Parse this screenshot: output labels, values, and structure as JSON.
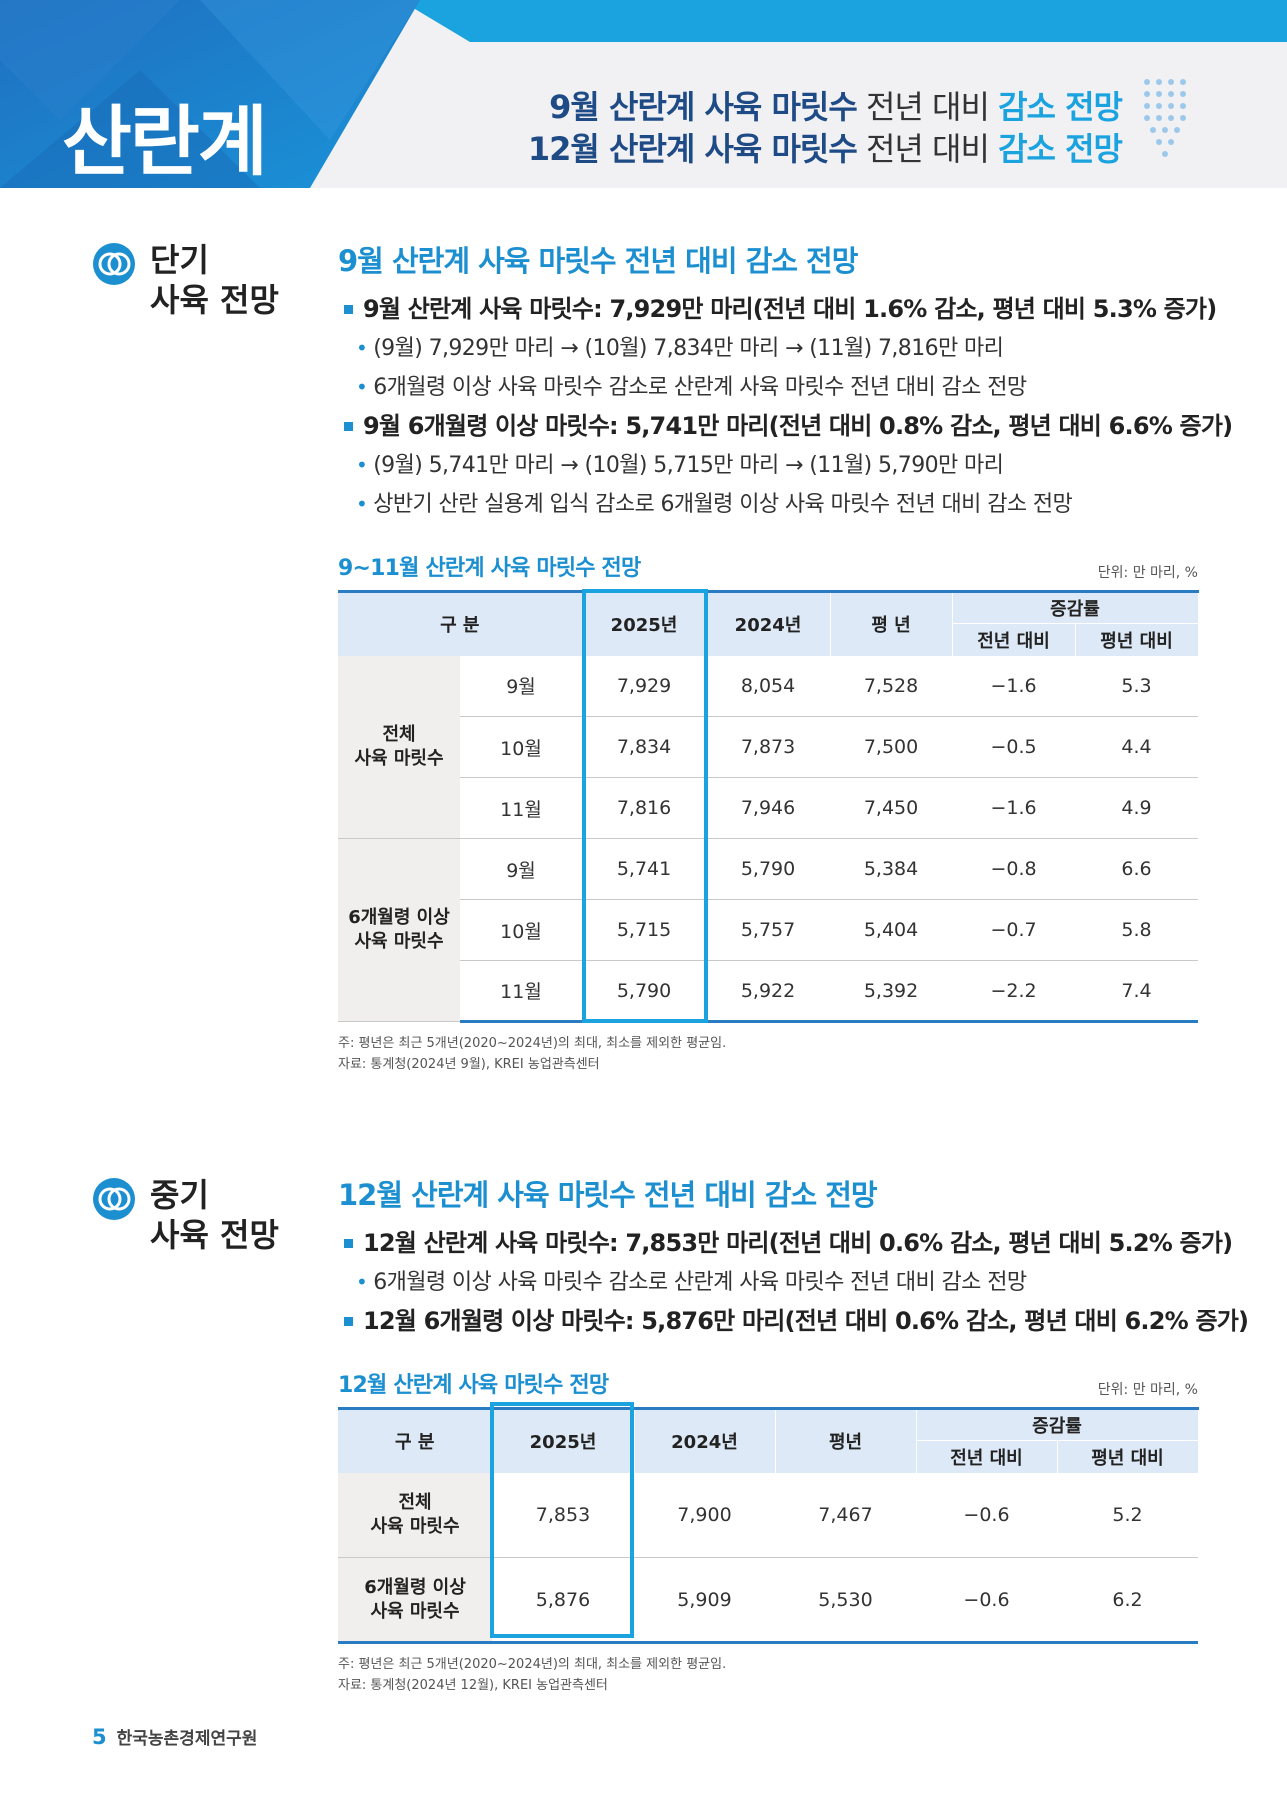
{
  "header": {
    "title": "산란계",
    "lines": [
      {
        "bold": "9월 산란계 사육 마릿수",
        "plain": " 전년 대비 ",
        "hl": "감소 전망"
      },
      {
        "bold": "12월 산란계 사육 마릿수",
        "plain": " 전년 대비 ",
        "hl": "감소 전망"
      }
    ]
  },
  "short_term": {
    "label_line1": "단기",
    "label_line2": "사육 전망",
    "heading": "9월 산란계 사육 마릿수 전년 대비 감소 전망",
    "bullets": [
      {
        "main": "9월 산란계 사육 마릿수: 7,929만 마리(전년 대비 1.6% 감소, 평년 대비 5.3% 증가)",
        "subs": [
          "(9월) 7,929만 마리 → (10월) 7,834만 마리 → (11월) 7,816만 마리",
          "6개월령 이상 사육 마릿수 감소로 산란계 사육 마릿수 전년 대비 감소 전망"
        ]
      },
      {
        "main": "9월 6개월령 이상 마릿수: 5,741만 마리(전년 대비 0.8% 감소, 평년 대비 6.6% 증가)",
        "subs": [
          "(9월) 5,741만 마리 → (10월) 5,715만 마리 → (11월) 5,790만 마리",
          "상반기 산란 실용계 입식 감소로 6개월령 이상 사육 마릿수 전년 대비 감소 전망"
        ]
      }
    ],
    "table": {
      "title": "9~11월 산란계 사육 마릿수 전망",
      "unit": "단위: 만 마리, %",
      "headers": {
        "gubun": "구  분",
        "y2025": "2025년",
        "y2024": "2024년",
        "avg": "평  년",
        "rate": "증감률",
        "yoy": "전년 대비",
        "vsavg": "평년 대비"
      },
      "groups": [
        {
          "name_line1": "전체",
          "name_line2": "사육 마릿수",
          "rows": [
            {
              "month": "9월",
              "v2025": "7,929",
              "v2024": "8,054",
              "avg": "7,528",
              "yoy": "−1.6",
              "vsavg": "5.3"
            },
            {
              "month": "10월",
              "v2025": "7,834",
              "v2024": "7,873",
              "avg": "7,500",
              "yoy": "−0.5",
              "vsavg": "4.4"
            },
            {
              "month": "11월",
              "v2025": "7,816",
              "v2024": "7,946",
              "avg": "7,450",
              "yoy": "−1.6",
              "vsavg": "4.9"
            }
          ]
        },
        {
          "name_line1": "6개월령 이상",
          "name_line2": "사육 마릿수",
          "rows": [
            {
              "month": "9월",
              "v2025": "5,741",
              "v2024": "5,790",
              "avg": "5,384",
              "yoy": "−0.8",
              "vsavg": "6.6"
            },
            {
              "month": "10월",
              "v2025": "5,715",
              "v2024": "5,757",
              "avg": "5,404",
              "yoy": "−0.7",
              "vsavg": "5.8"
            },
            {
              "month": "11월",
              "v2025": "5,790",
              "v2024": "5,922",
              "avg": "5,392",
              "yoy": "−2.2",
              "vsavg": "7.4"
            }
          ]
        }
      ],
      "note1": "주: 평년은 최근 5개년(2020~2024년)의 최대, 최소를 제외한 평균임.",
      "note2": "자료: 통계청(2024년 9월), KREI 농업관측센터"
    }
  },
  "mid_term": {
    "label_line1": "중기",
    "label_line2": "사육 전망",
    "heading": "12월 산란계 사육 마릿수 전년 대비 감소 전망",
    "bullet1": "12월 산란계 사육 마릿수: 7,853만 마리(전년 대비 0.6% 감소, 평년 대비 5.2% 증가)",
    "sub1": "6개월령 이상 사육 마릿수 감소로 산란계 사육 마릿수 전년 대비 감소 전망",
    "bullet2": "12월 6개월령 이상 마릿수: 5,876만 마리(전년 대비 0.6% 감소, 평년 대비 6.2% 증가)",
    "table": {
      "title": "12월 산란계 사육 마릿수 전망",
      "unit": "단위: 만 마리, %",
      "headers": {
        "gubun": "구  분",
        "y2025": "2025년",
        "y2024": "2024년",
        "avg": "평년",
        "rate": "증감률",
        "yoy": "전년 대비",
        "vsavg": "평년 대비"
      },
      "rows": [
        {
          "name_line1": "전체",
          "name_line2": "사육 마릿수",
          "v2025": "7,853",
          "v2024": "7,900",
          "avg": "7,467",
          "yoy": "−0.6",
          "vsavg": "5.2"
        },
        {
          "name_line1": "6개월령 이상",
          "name_line2": "사육 마릿수",
          "v2025": "5,876",
          "v2024": "5,909",
          "avg": "5,530",
          "yoy": "−0.6",
          "vsavg": "6.2"
        }
      ],
      "note1": "주: 평년은 최근 5개년(2020~2024년)의 최대, 최소를 제외한 평균임.",
      "note2": "자료: 통계청(2024년 12월), KREI 농업관측센터"
    }
  },
  "footer": {
    "page": "5",
    "org": "한국농촌경제연구원"
  },
  "colors": {
    "accent": "#1aa3df",
    "heading": "#1c8fd0",
    "navy": "#1e4a86",
    "header_bg": "#f1f1f3"
  }
}
